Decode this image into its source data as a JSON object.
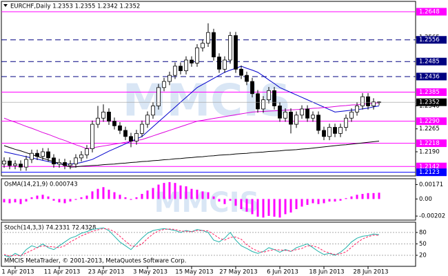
{
  "chart_data": {
    "type": "candlestick",
    "header": "EURCHF,Daily  1.2353 1.2355 1.2342 1.2352",
    "watermark": "MMCIS",
    "footer": "MMCIS MetaTrader, © 2001-2013, MetaQuotes Software Corp.",
    "categories": [
      null,
      null,
      "1 Apr 2013",
      null,
      null,
      null,
      null,
      null,
      null,
      null,
      "11 Apr 2013",
      null,
      null,
      null,
      null,
      null,
      null,
      null,
      "23 Apr 2013",
      null,
      null,
      null,
      null,
      null,
      null,
      null,
      "3 May 2013",
      null,
      null,
      null,
      null,
      null,
      null,
      null,
      "15 May 2013",
      null,
      null,
      null,
      null,
      null,
      null,
      null,
      "27 May 2013",
      null,
      null,
      null,
      null,
      null,
      null,
      null,
      "6 Jun 2013",
      null,
      null,
      null,
      null,
      null,
      null,
      null,
      "18 Jun 2013",
      null,
      null,
      null,
      null,
      null,
      null,
      null,
      "28 Jun 2013",
      null,
      null
    ],
    "open": [
      1.215,
      1.216,
      1.2145,
      1.215,
      1.214,
      1.2165,
      1.2185,
      1.2175,
      1.219,
      1.217,
      1.215,
      1.2155,
      1.2145,
      1.215,
      1.217,
      1.218,
      1.22,
      1.228,
      1.23,
      1.232,
      1.229,
      1.2275,
      1.226,
      1.224,
      1.2225,
      1.225,
      1.228,
      1.231,
      1.234,
      1.24,
      1.242,
      1.244,
      1.247,
      1.2455,
      1.249,
      1.248,
      1.253,
      1.2545,
      1.258,
      1.25,
      1.246,
      1.249,
      1.257,
      1.246,
      1.244,
      1.242,
      1.238,
      1.233,
      1.236,
      1.239,
      1.234,
      1.23,
      1.232,
      1.228,
      1.231,
      1.233,
      1.23,
      1.231,
      1.226,
      1.224,
      1.227,
      1.225,
      1.227,
      1.23,
      1.232,
      1.234,
      1.237,
      1.234,
      1.2353
    ],
    "high": [
      1.2172,
      1.2172,
      1.2162,
      1.2162,
      1.2177,
      1.2197,
      1.2197,
      1.2202,
      1.2202,
      1.2182,
      1.2167,
      1.2167,
      1.2162,
      1.2182,
      1.2192,
      1.2212,
      1.2292,
      1.234,
      1.2345,
      1.2332,
      1.2302,
      1.2287,
      1.2272,
      1.2252,
      1.2262,
      1.2292,
      1.2322,
      1.2352,
      1.2412,
      1.2432,
      1.2452,
      1.2482,
      1.2482,
      1.2502,
      1.2502,
      1.2542,
      1.2557,
      1.261,
      1.2592,
      1.2512,
      1.2502,
      1.2582,
      1.2582,
      1.2472,
      1.2452,
      1.2432,
      1.2392,
      1.2372,
      1.2402,
      1.2402,
      1.2352,
      1.2332,
      1.2332,
      1.2322,
      1.2342,
      1.2342,
      1.2322,
      1.2322,
      1.2272,
      1.2282,
      1.2282,
      1.2282,
      1.2312,
      1.2332,
      1.2352,
      1.2382,
      1.2382,
      1.2365,
      1.2355
    ],
    "low": [
      1.2138,
      1.2133,
      1.2133,
      1.2128,
      1.2128,
      1.2153,
      1.2163,
      1.2163,
      1.2158,
      1.2138,
      1.2138,
      1.2133,
      1.2133,
      1.2138,
      1.2158,
      1.2168,
      1.2188,
      1.2268,
      1.2288,
      1.2278,
      1.2263,
      1.2248,
      1.2228,
      1.2205,
      1.2213,
      1.2238,
      1.2268,
      1.2298,
      1.2328,
      1.2388,
      1.2408,
      1.2428,
      1.2443,
      1.2443,
      1.2468,
      1.2468,
      1.2518,
      1.2533,
      1.2488,
      1.2448,
      1.2448,
      1.2478,
      1.2448,
      1.2428,
      1.2408,
      1.2368,
      1.2318,
      1.2318,
      1.2348,
      1.2328,
      1.2288,
      1.2288,
      1.225,
      1.2268,
      1.2298,
      1.2288,
      1.2288,
      1.2248,
      1.2228,
      1.2228,
      1.2238,
      1.2238,
      1.2258,
      1.2288,
      1.2308,
      1.2328,
      1.2328,
      1.2328,
      1.2342
    ],
    "close": [
      1.216,
      1.2145,
      1.215,
      1.214,
      1.2165,
      1.2185,
      1.2175,
      1.219,
      1.217,
      1.215,
      1.2155,
      1.2145,
      1.215,
      1.217,
      1.218,
      1.22,
      1.228,
      1.23,
      1.232,
      1.229,
      1.2275,
      1.226,
      1.224,
      1.2225,
      1.225,
      1.228,
      1.231,
      1.234,
      1.24,
      1.242,
      1.244,
      1.247,
      1.2455,
      1.249,
      1.248,
      1.253,
      1.2545,
      1.258,
      1.25,
      1.246,
      1.249,
      1.257,
      1.246,
      1.244,
      1.242,
      1.238,
      1.233,
      1.236,
      1.239,
      1.234,
      1.23,
      1.232,
      1.228,
      1.231,
      1.233,
      1.23,
      1.231,
      1.226,
      1.224,
      1.227,
      1.225,
      1.227,
      1.23,
      1.232,
      1.234,
      1.237,
      1.234,
      1.2353,
      1.2352
    ],
    "moving_averages": [
      {
        "color": "#0000cc",
        "values": [
          1.219,
          1.2186,
          1.2182,
          1.2178,
          1.2174,
          1.217,
          1.2166,
          1.2162,
          1.2158,
          1.2154,
          1.215,
          1.215,
          1.215,
          1.2152,
          1.2155,
          1.216,
          1.2165,
          1.2174,
          1.2183,
          1.2192,
          1.22,
          1.2208,
          1.2216,
          1.2224,
          1.2232,
          1.224,
          1.2256,
          1.2272,
          1.2288,
          1.2304,
          1.232,
          1.2336,
          1.2352,
          1.2368,
          1.2384,
          1.24,
          1.241,
          1.242,
          1.243,
          1.244,
          1.245,
          1.2457,
          1.2463,
          1.247,
          1.2463,
          1.2457,
          1.245,
          1.2438,
          1.2425,
          1.2413,
          1.24,
          1.2392,
          1.2384,
          1.2376,
          1.2368,
          1.236,
          1.2352,
          1.2344,
          1.2336,
          1.2328,
          1.232,
          1.2322,
          1.2324,
          1.2326,
          1.2328,
          1.233,
          1.2333,
          1.2337,
          1.234
        ]
      },
      {
        "color": "#dd00dd",
        "values": [
          1.23,
          1.2293,
          1.2287,
          1.228,
          1.2273,
          1.2267,
          1.226,
          1.2253,
          1.2247,
          1.224,
          1.2233,
          1.2227,
          1.222,
          1.2213,
          1.2207,
          1.22,
          1.2203,
          1.2206,
          1.2209,
          1.2212,
          1.2215,
          1.2218,
          1.2221,
          1.2224,
          1.2227,
          1.223,
          1.2236,
          1.2242,
          1.2248,
          1.2254,
          1.226,
          1.2266,
          1.2272,
          1.2278,
          1.2284,
          1.229,
          1.2293,
          1.2296,
          1.2299,
          1.2302,
          1.2305,
          1.2308,
          1.2311,
          1.2314,
          1.2317,
          1.232,
          1.2321,
          1.2322,
          1.2323,
          1.2324,
          1.2325,
          1.2326,
          1.2327,
          1.2328,
          1.2329,
          1.233,
          1.2332,
          1.2333,
          1.2335,
          1.2336,
          1.2338,
          1.234,
          1.2341,
          1.2343,
          1.2344,
          1.2346,
          1.2347,
          1.2349,
          1.235
        ]
      },
      {
        "color": "#000000",
        "values": [
          1.221,
          1.2204,
          1.2198,
          1.2193,
          1.2187,
          1.2181,
          1.2175,
          1.2169,
          1.2163,
          1.2158,
          1.2152,
          1.2146,
          1.214,
          1.2141,
          1.2143,
          1.2144,
          1.2145,
          1.2146,
          1.2148,
          1.2149,
          1.215,
          1.2152,
          1.2153,
          1.2155,
          1.2156,
          1.2158,
          1.2159,
          1.2161,
          1.2162,
          1.2164,
          1.2165,
          1.2167,
          1.2168,
          1.217,
          1.2171,
          1.2173,
          1.2174,
          1.2176,
          1.2177,
          1.2179,
          1.218,
          1.2181,
          1.2183,
          1.2184,
          1.2185,
          1.2187,
          1.2188,
          1.2189,
          1.2191,
          1.2192,
          1.2193,
          1.2195,
          1.2196,
          1.2197,
          1.2199,
          1.22,
          1.2202,
          1.2204,
          1.2206,
          1.2208,
          1.221,
          1.2212,
          1.2213,
          1.2215,
          1.2217,
          1.2219,
          1.2221,
          1.2223,
          1.2225
        ]
      }
    ],
    "ylim": [
      1.2111,
      1.2675
    ],
    "yticks": [
      {
        "value": 1.219,
        "label": "1.2190"
      },
      1.2265,
      {
        "value": 1.234,
        "label": "1.2340"
      },
      1.2565
    ],
    "levels": [
      {
        "value": 1.2648,
        "color": "#ff00ff",
        "style": "solid"
      },
      {
        "value": 1.2556,
        "color": "#000080",
        "style": "dashed"
      },
      {
        "value": 1.2485,
        "color": "#000080",
        "style": "dashed"
      },
      {
        "value": 1.2436,
        "color": "#000080",
        "style": "dashed"
      },
      {
        "value": 1.2385,
        "color": "#ff00ff",
        "style": "solid"
      },
      {
        "value": 1.229,
        "label": "1.2290",
        "color": "#ff00ff",
        "style": "solid"
      },
      {
        "value": 1.2218,
        "color": "#ff00ff",
        "style": "solid"
      },
      {
        "value": 1.2142,
        "color": "#ff00ff",
        "style": "solid"
      },
      {
        "value": 1.2123,
        "color": "#0000ff",
        "style": "solid"
      }
    ],
    "osma": {
      "label": "OsMA(14,21,9) 0.000743",
      "color": "#ff00ff",
      "ylim": [
        -0.0025,
        0.0024
      ],
      "yticks": [
        0.00171,
        {
          "value": 0,
          "label": "0.00"
        },
        -0.00202
      ],
      "values": [
        -0.0004,
        -0.0005,
        -0.0004,
        -0.0006,
        -0.0003,
        0.0002,
        0.0004,
        0.0005,
        0.0003,
        -0.0002,
        -0.0004,
        -0.0005,
        -0.0003,
        -0.0001,
        0.0002,
        0.0004,
        0.0009,
        0.0012,
        0.0014,
        0.0011,
        0.0008,
        0.0005,
        0.0002,
        -0.0001,
        0.0002,
        0.0006,
        0.001,
        0.0013,
        0.0017,
        0.0019,
        0.002,
        0.0019,
        0.0016,
        0.0015,
        0.0012,
        0.0011,
        0.0009,
        0.0008,
        0.0003,
        -0.0003,
        -0.0006,
        -0.0002,
        -0.0008,
        -0.0012,
        -0.0015,
        -0.0018,
        -0.0021,
        -0.0022,
        -0.002,
        -0.0021,
        -0.0022,
        -0.0018,
        -0.0016,
        -0.0012,
        -0.0009,
        -0.0007,
        -0.0005,
        -0.0006,
        -0.0005,
        -0.0003,
        -0.0003,
        -0.0002,
        0.0001,
        0.0003,
        0.0005,
        0.0006,
        0.0007,
        0.0007,
        0.000743
      ]
    },
    "stoch": {
      "label": "Stoch(14,3,3) 74.2331 72.4328",
      "ylim": [
        -9,
        107
      ],
      "yticks": [
        80,
        50,
        20
      ],
      "main": {
        "color": "#20b2aa",
        "values": [
          20,
          15,
          25,
          18,
          35,
          45,
          40,
          50,
          40,
          35,
          45,
          55,
          65,
          70,
          78,
          82,
          88,
          90,
          92,
          85,
          70,
          55,
          45,
          35,
          50,
          65,
          78,
          85,
          88,
          90,
          88,
          85,
          80,
          85,
          82,
          88,
          85,
          80,
          60,
          55,
          65,
          80,
          60,
          45,
          38,
          30,
          25,
          30,
          40,
          35,
          28,
          35,
          30,
          40,
          45,
          50,
          40,
          30,
          22,
          25,
          20,
          28,
          40,
          55,
          65,
          70,
          72,
          76,
          74.2331
        ]
      },
      "signal": {
        "color": "#ff2060",
        "values": [
          22,
          18,
          20,
          19,
          26,
          33,
          40,
          45,
          43,
          42,
          40,
          45,
          55,
          63,
          71,
          77,
          83,
          87,
          90,
          89,
          82,
          70,
          57,
          45,
          43,
          50,
          64,
          76,
          84,
          88,
          89,
          88,
          84,
          83,
          82,
          85,
          85,
          84,
          75,
          65,
          60,
          67,
          68,
          62,
          48,
          38,
          31,
          28,
          32,
          35,
          34,
          33,
          31,
          35,
          38,
          45,
          45,
          40,
          31,
          26,
          22,
          24,
          29,
          41,
          53,
          63,
          69,
          73,
          72.4328
        ]
      }
    }
  }
}
